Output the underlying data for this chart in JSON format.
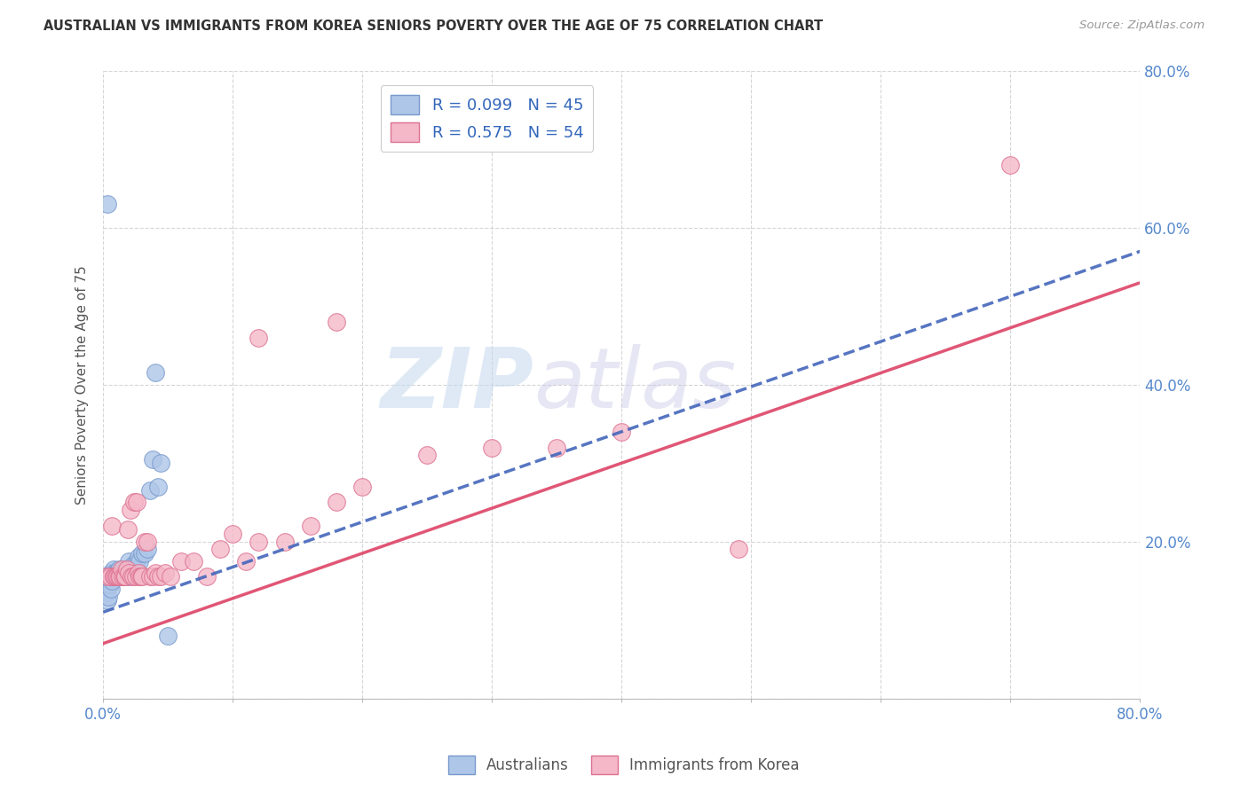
{
  "title": "AUSTRALIAN VS IMMIGRANTS FROM KOREA SENIORS POVERTY OVER THE AGE OF 75 CORRELATION CHART",
  "source": "Source: ZipAtlas.com",
  "ylabel": "Seniors Poverty Over the Age of 75",
  "xlim": [
    0.0,
    0.8
  ],
  "ylim": [
    0.0,
    0.8
  ],
  "aus_color": "#aec6e8",
  "korea_color": "#f4b8c8",
  "aus_edge_color": "#7799cc",
  "korea_edge_color": "#dd7090",
  "aus_line_color": "#4466bb",
  "korea_line_color": "#dd4466",
  "watermark_big": "ZIP",
  "watermark_small": "atlas",
  "background_color": "#ffffff",
  "aus_x": [
    0.002,
    0.003,
    0.004,
    0.005,
    0.005,
    0.006,
    0.006,
    0.007,
    0.007,
    0.008,
    0.008,
    0.009,
    0.009,
    0.01,
    0.01,
    0.011,
    0.011,
    0.012,
    0.012,
    0.013,
    0.014,
    0.015,
    0.016,
    0.017,
    0.018,
    0.019,
    0.02,
    0.021,
    0.022,
    0.023,
    0.024,
    0.025,
    0.026,
    0.027,
    0.028,
    0.03,
    0.032,
    0.034,
    0.036,
    0.038,
    0.04,
    0.042,
    0.044,
    0.05,
    0.003
  ],
  "aus_y": [
    0.135,
    0.125,
    0.13,
    0.145,
    0.155,
    0.14,
    0.16,
    0.15,
    0.16,
    0.155,
    0.165,
    0.155,
    0.16,
    0.16,
    0.155,
    0.16,
    0.155,
    0.165,
    0.155,
    0.155,
    0.16,
    0.165,
    0.155,
    0.165,
    0.165,
    0.155,
    0.175,
    0.16,
    0.16,
    0.17,
    0.165,
    0.17,
    0.175,
    0.18,
    0.175,
    0.185,
    0.185,
    0.19,
    0.265,
    0.305,
    0.415,
    0.27,
    0.3,
    0.08,
    0.63
  ],
  "korea_x": [
    0.003,
    0.005,
    0.007,
    0.008,
    0.009,
    0.01,
    0.011,
    0.012,
    0.013,
    0.014,
    0.015,
    0.016,
    0.017,
    0.018,
    0.019,
    0.02,
    0.021,
    0.022,
    0.023,
    0.024,
    0.025,
    0.026,
    0.027,
    0.028,
    0.029,
    0.03,
    0.032,
    0.034,
    0.036,
    0.038,
    0.04,
    0.042,
    0.044,
    0.048,
    0.052,
    0.06,
    0.07,
    0.08,
    0.09,
    0.1,
    0.11,
    0.12,
    0.14,
    0.16,
    0.18,
    0.2,
    0.25,
    0.3,
    0.35,
    0.4,
    0.12,
    0.18,
    0.49,
    0.7
  ],
  "korea_y": [
    0.155,
    0.155,
    0.22,
    0.155,
    0.155,
    0.155,
    0.155,
    0.155,
    0.155,
    0.165,
    0.155,
    0.155,
    0.155,
    0.165,
    0.215,
    0.16,
    0.24,
    0.155,
    0.155,
    0.25,
    0.155,
    0.25,
    0.16,
    0.155,
    0.155,
    0.155,
    0.2,
    0.2,
    0.155,
    0.155,
    0.16,
    0.155,
    0.155,
    0.16,
    0.155,
    0.175,
    0.175,
    0.155,
    0.19,
    0.21,
    0.175,
    0.2,
    0.2,
    0.22,
    0.25,
    0.27,
    0.31,
    0.32,
    0.32,
    0.34,
    0.46,
    0.48,
    0.19,
    0.68
  ]
}
